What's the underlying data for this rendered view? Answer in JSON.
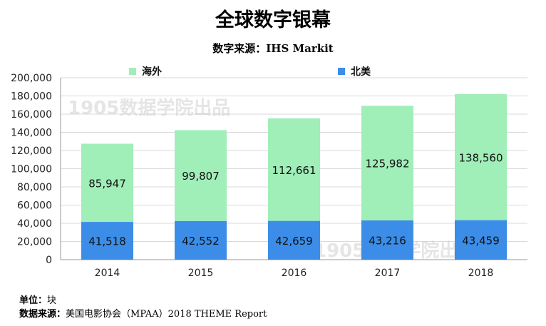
{
  "header": {
    "title": "全球数字银幕",
    "source": "数字来源：IHS  Markit"
  },
  "watermark": "1905数据学院出品",
  "footer": {
    "unit_label": "单位：",
    "unit_value": "块",
    "source_label": "数据来源：",
    "source_value": "美国电影协会（MPAA）2018 THEME Report"
  },
  "colors": {
    "overseas": "#a0eeb8",
    "north_america": "#3b8de8",
    "grid": "#d9d9d9",
    "axis": "#999999"
  },
  "chart_data": {
    "type": "bar",
    "stacked": true,
    "title": "全球数字银幕",
    "categories": [
      "2014",
      "2015",
      "2016",
      "2017",
      "2018"
    ],
    "series": [
      {
        "name": "北美",
        "values": [
          41518,
          42552,
          42659,
          43216,
          43459
        ]
      },
      {
        "name": "海外",
        "values": [
          85947,
          99807,
          112661,
          125982,
          138560
        ]
      }
    ],
    "data_labels": {
      "北美": [
        "41,518",
        "42,552",
        "42,659",
        "43,216",
        "43,459"
      ],
      "海外": [
        "85,947",
        "99,807",
        "112,661",
        "125,982",
        "138,560"
      ]
    },
    "ylim": [
      0,
      200000
    ],
    "yticks": [
      0,
      20000,
      40000,
      60000,
      80000,
      100000,
      120000,
      140000,
      160000,
      180000,
      200000
    ],
    "ytick_labels": [
      "0",
      "20,000",
      "40,000",
      "60,000",
      "80,000",
      "100,000",
      "120,000",
      "140,000",
      "160,000",
      "180,000",
      "200,000"
    ],
    "grid": true,
    "legend": "top"
  }
}
